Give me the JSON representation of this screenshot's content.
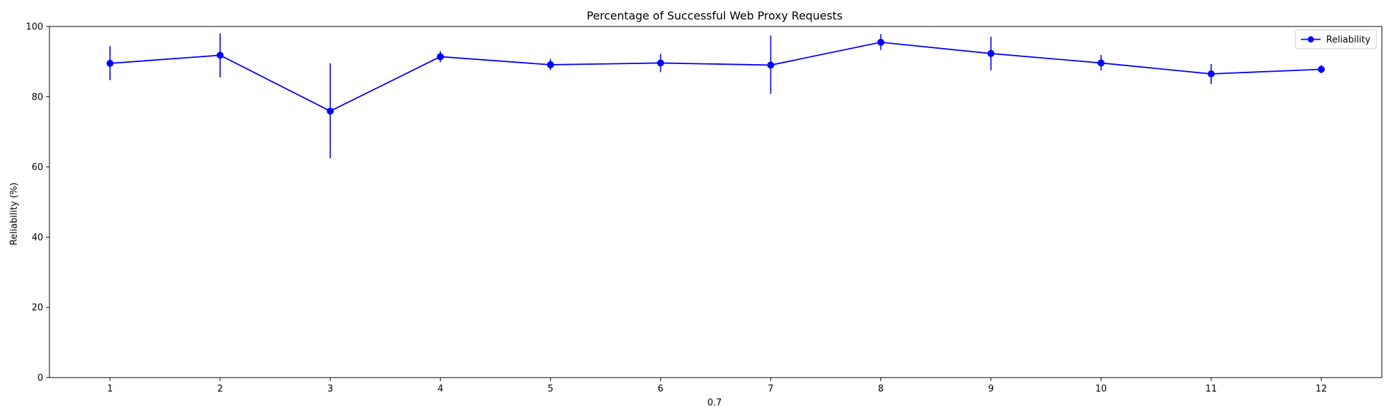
{
  "chart_data": {
    "type": "line",
    "title": "Percentage of Successful Web Proxy Requests",
    "xlabel": "0.7",
    "ylabel": "Reliability (%)",
    "x": [
      1,
      2,
      3,
      4,
      5,
      6,
      7,
      8,
      9,
      10,
      11,
      12
    ],
    "xlim": [
      0.45,
      12.55
    ],
    "ylim": [
      0,
      100
    ],
    "yticks": [
      0,
      20,
      40,
      60,
      80,
      100
    ],
    "grid": false,
    "legend_position": "top-right",
    "series": [
      {
        "name": "Reliability",
        "color": "#0000ff",
        "marker": "circle",
        "values": [
          89.5,
          91.8,
          75.9,
          91.4,
          89.1,
          89.6,
          89.0,
          95.5,
          92.3,
          89.6,
          86.5,
          87.8
        ],
        "error_low": [
          84.7,
          85.5,
          62.5,
          89.8,
          87.6,
          87.0,
          80.8,
          93.3,
          87.5,
          87.5,
          83.6,
          86.7
        ],
        "error_high": [
          94.4,
          98.0,
          89.5,
          93.0,
          90.8,
          92.2,
          97.4,
          97.8,
          97.1,
          91.9,
          89.3,
          89.0
        ]
      }
    ]
  }
}
